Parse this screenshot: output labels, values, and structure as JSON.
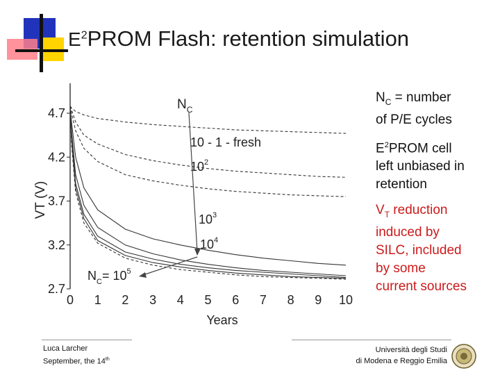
{
  "slide": {
    "title_prefix": "E",
    "title_sup": "2",
    "title_rest": "PROM Flash: retention simulation"
  },
  "annotations": {
    "nc_pre": "N",
    "nc_sub": "C",
    "nc_rest": " = number",
    "nc_line2": "of P/E cycles",
    "cell_pre": "E",
    "cell_sup": "2",
    "cell_line1": "PROM cell",
    "cell_line2": "left unbiased in",
    "cell_line3": "retention",
    "vt_pre": "V",
    "vt_sub": "T",
    "vt_line1": " reduction",
    "vt_line2": "induced by",
    "vt_line3": "SILC, included",
    "vt_line4": "by some",
    "vt_line5": "current sources"
  },
  "footer": {
    "author": "Luca Larcher",
    "date_pre": "September, the 14",
    "date_sup": "th",
    "university_line1": "Università degli Studi",
    "university_line2": "di Modena e Reggio Emilia"
  },
  "colors": {
    "deco_blue": "#2233bb",
    "deco_yellow": "#ffd400",
    "deco_pink": "#ff7f8a",
    "deco_bar": "#111111",
    "red_text": "#cc1a1a"
  },
  "chart_data": {
    "type": "line",
    "xlabel": "Years",
    "ylabel": "VT (V)",
    "xlim": [
      0,
      10
    ],
    "ylim": [
      2.7,
      4.7
    ],
    "x_ticks": [
      0,
      1,
      2,
      3,
      4,
      5,
      6,
      7,
      8,
      9,
      10
    ],
    "y_ticks": [
      2.7,
      3.2,
      3.7,
      4.2,
      4.7
    ],
    "series": [
      {
        "style": "dashed",
        "x": [
          0,
          0.05,
          0.2,
          0.5,
          1,
          2,
          3,
          4,
          5,
          6,
          7,
          8,
          9,
          10
        ],
        "y": [
          4.78,
          4.76,
          4.72,
          4.68,
          4.64,
          4.6,
          4.57,
          4.55,
          4.53,
          4.51,
          4.5,
          4.49,
          4.48,
          4.47
        ]
      },
      {
        "style": "dashed",
        "x": [
          0,
          0.05,
          0.2,
          0.5,
          1,
          2,
          3,
          4,
          5,
          6,
          7,
          8,
          9,
          10
        ],
        "y": [
          4.78,
          4.74,
          4.6,
          4.45,
          4.35,
          4.23,
          4.16,
          4.11,
          4.07,
          4.04,
          4.02,
          4.0,
          3.98,
          3.97
        ]
      },
      {
        "style": "dashed",
        "x": [
          0,
          0.05,
          0.2,
          0.5,
          1,
          2,
          3,
          4,
          5,
          6,
          7,
          8,
          9,
          10
        ],
        "y": [
          4.78,
          4.7,
          4.5,
          4.3,
          4.15,
          4.0,
          3.93,
          3.88,
          3.84,
          3.81,
          3.79,
          3.77,
          3.76,
          3.75
        ]
      },
      {
        "style": "solid",
        "x": [
          0,
          0.05,
          0.2,
          0.5,
          1,
          2,
          3,
          4,
          5,
          6,
          7,
          8,
          9,
          10
        ],
        "y": [
          4.78,
          4.6,
          4.2,
          3.85,
          3.6,
          3.38,
          3.27,
          3.2,
          3.14,
          3.09,
          3.05,
          3.02,
          2.99,
          2.97
        ]
      },
      {
        "style": "solid",
        "x": [
          0,
          0.05,
          0.2,
          0.5,
          1,
          2,
          3,
          4,
          5,
          6,
          7,
          8,
          9,
          10
        ],
        "y": [
          4.78,
          4.5,
          4.0,
          3.65,
          3.4,
          3.2,
          3.1,
          3.03,
          2.98,
          2.94,
          2.91,
          2.89,
          2.87,
          2.85
        ]
      },
      {
        "style": "solid",
        "x": [
          0,
          0.05,
          0.2,
          0.5,
          1,
          2,
          3,
          4,
          5,
          6,
          7,
          8,
          9,
          10
        ],
        "y": [
          4.78,
          4.45,
          3.9,
          3.55,
          3.3,
          3.12,
          3.04,
          2.98,
          2.94,
          2.91,
          2.89,
          2.87,
          2.85,
          2.83
        ]
      },
      {
        "style": "solid",
        "x": [
          0,
          0.05,
          0.2,
          0.5,
          1,
          2,
          3,
          4,
          5,
          6,
          7,
          8,
          9,
          10
        ],
        "y": [
          4.78,
          4.4,
          3.85,
          3.5,
          3.25,
          3.08,
          3.0,
          2.95,
          2.91,
          2.88,
          2.86,
          2.84,
          2.83,
          2.82
        ]
      },
      {
        "style": "dashed",
        "x": [
          0,
          0.05,
          0.2,
          0.5,
          1,
          2,
          3,
          4,
          5,
          6,
          7,
          8,
          9,
          10
        ],
        "y": [
          4.78,
          4.35,
          3.8,
          3.45,
          3.22,
          3.05,
          2.97,
          2.92,
          2.89,
          2.86,
          2.84,
          2.83,
          2.82,
          2.81
        ]
      }
    ],
    "annotations": {
      "nc_top": "N",
      "nc_top_sub": "C",
      "fresh": "10 - 1 - fresh",
      "a2_base": "10",
      "a2_exp": "2",
      "a3_base": "10",
      "a3_exp": "3",
      "a4_base": "10",
      "a4_exp": "4",
      "a5_pre": "N",
      "a5_sub": "C",
      "a5_mid": "= 10",
      "a5_exp": "5"
    }
  }
}
